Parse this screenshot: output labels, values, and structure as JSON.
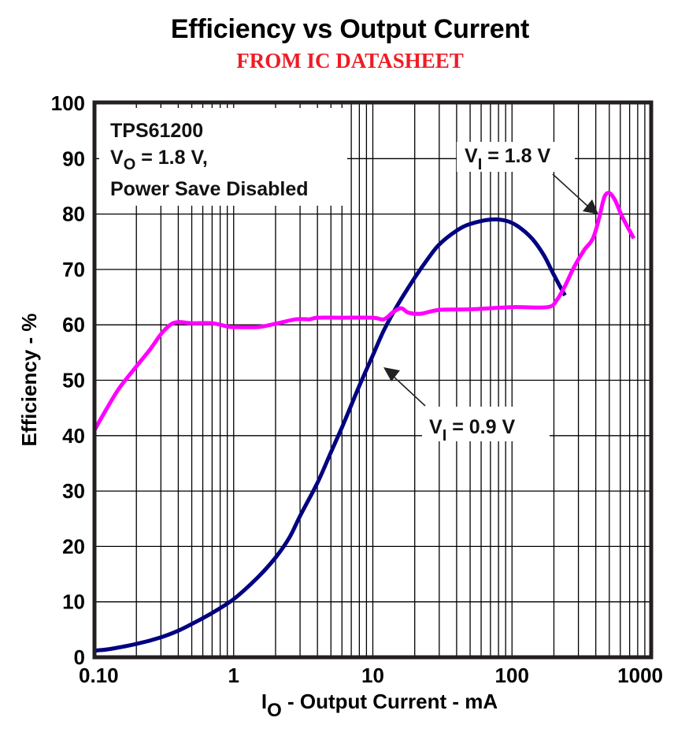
{
  "chart_data": {
    "type": "line",
    "title": "Efficiency vs Output Current",
    "subtitle": "FROM IC DATASHEET",
    "xlabel": {
      "main": "I",
      "sub": "O",
      "rest": " - Output Current - mA"
    },
    "ylabel": "Efficiency - %",
    "xscale": "log",
    "xlim": [
      0.1,
      1000
    ],
    "ylim": [
      0,
      100
    ],
    "grid": true,
    "xticks": [
      {
        "value": 0.1,
        "label": "0.10"
      },
      {
        "value": 1,
        "label": "1"
      },
      {
        "value": 10,
        "label": "10"
      },
      {
        "value": 100,
        "label": "100"
      },
      {
        "value": 1000,
        "label": "1000"
      }
    ],
    "yticks": [
      {
        "value": 0,
        "label": "0"
      },
      {
        "value": 10,
        "label": "10"
      },
      {
        "value": 20,
        "label": "20"
      },
      {
        "value": 30,
        "label": "30"
      },
      {
        "value": 40,
        "label": "40"
      },
      {
        "value": 50,
        "label": "50"
      },
      {
        "value": 60,
        "label": "60"
      },
      {
        "value": 70,
        "label": "70"
      },
      {
        "value": 80,
        "label": "80"
      },
      {
        "value": 90,
        "label": "90"
      },
      {
        "value": 100,
        "label": "100"
      }
    ],
    "info_box": {
      "line1": "TPS61200",
      "line2": {
        "main": "V",
        "sub": "O",
        "rest": " = 1.8 V,"
      },
      "line3": "Power Save Disabled"
    },
    "series": [
      {
        "name": "VI = 0.9 V",
        "color": "#000080",
        "label": {
          "main": "V",
          "sub": "I",
          "rest": " = 0.9 V"
        },
        "points": [
          [
            0.1,
            1.2
          ],
          [
            0.13,
            1.5
          ],
          [
            0.2,
            2.4
          ],
          [
            0.3,
            3.6
          ],
          [
            0.4,
            4.8
          ],
          [
            0.5,
            6.0
          ],
          [
            0.7,
            8.0
          ],
          [
            1.0,
            10.5
          ],
          [
            1.5,
            14.5
          ],
          [
            2.0,
            18.0
          ],
          [
            2.5,
            21.5
          ],
          [
            3.0,
            25.5
          ],
          [
            4.0,
            31.5
          ],
          [
            5.0,
            37.0
          ],
          [
            6.0,
            41.5
          ],
          [
            7.0,
            45.5
          ],
          [
            8.0,
            49.0
          ],
          [
            10.0,
            54.5
          ],
          [
            12.0,
            59.0
          ],
          [
            15.0,
            63.5
          ],
          [
            20.0,
            68.5
          ],
          [
            25.0,
            72.0
          ],
          [
            30.0,
            74.5
          ],
          [
            40.0,
            77.0
          ],
          [
            50.0,
            78.2
          ],
          [
            70.0,
            79.0
          ],
          [
            90.0,
            78.8
          ],
          [
            110.0,
            77.8
          ],
          [
            140.0,
            75.5
          ],
          [
            170.0,
            72.5
          ],
          [
            200.0,
            69.0
          ],
          [
            240.0,
            65.3
          ]
        ]
      },
      {
        "name": "VI = 1.8 V",
        "color": "#ff00ff",
        "label": {
          "main": "V",
          "sub": "I",
          "rest": " = 1.8 V"
        },
        "points": [
          [
            0.1,
            41.0
          ],
          [
            0.12,
            44.5
          ],
          [
            0.15,
            48.5
          ],
          [
            0.2,
            52.5
          ],
          [
            0.25,
            55.5
          ],
          [
            0.3,
            58.3
          ],
          [
            0.35,
            60.0
          ],
          [
            0.4,
            60.5
          ],
          [
            0.5,
            60.3
          ],
          [
            0.7,
            60.3
          ],
          [
            0.9,
            59.7
          ],
          [
            1.0,
            59.6
          ],
          [
            1.5,
            59.6
          ],
          [
            2.0,
            60.2
          ],
          [
            2.8,
            61.0
          ],
          [
            3.5,
            61.0
          ],
          [
            4.0,
            61.3
          ],
          [
            6.0,
            61.3
          ],
          [
            10.0,
            61.3
          ],
          [
            12.0,
            61.0
          ],
          [
            14.0,
            62.3
          ],
          [
            16.0,
            63.0
          ],
          [
            18.0,
            62.2
          ],
          [
            22.0,
            62.0
          ],
          [
            30.0,
            62.7
          ],
          [
            50.0,
            62.8
          ],
          [
            100.0,
            63.2
          ],
          [
            180.0,
            63.2
          ],
          [
            210.0,
            64.5
          ],
          [
            240.0,
            67.0
          ],
          [
            280.0,
            70.5
          ],
          [
            330.0,
            73.5
          ],
          [
            380.0,
            75.5
          ],
          [
            420.0,
            79.0
          ],
          [
            460.0,
            83.0
          ],
          [
            500.0,
            83.8
          ],
          [
            550.0,
            82.5
          ],
          [
            620.0,
            79.5
          ],
          [
            750.0,
            75.6
          ]
        ]
      }
    ],
    "annotations": [
      {
        "series": "VI = 1.8 V",
        "arrow_to": [
          420,
          78.5
        ]
      },
      {
        "series": "VI = 0.9 V",
        "arrow_to": [
          11.5,
          52.0
        ]
      }
    ]
  }
}
